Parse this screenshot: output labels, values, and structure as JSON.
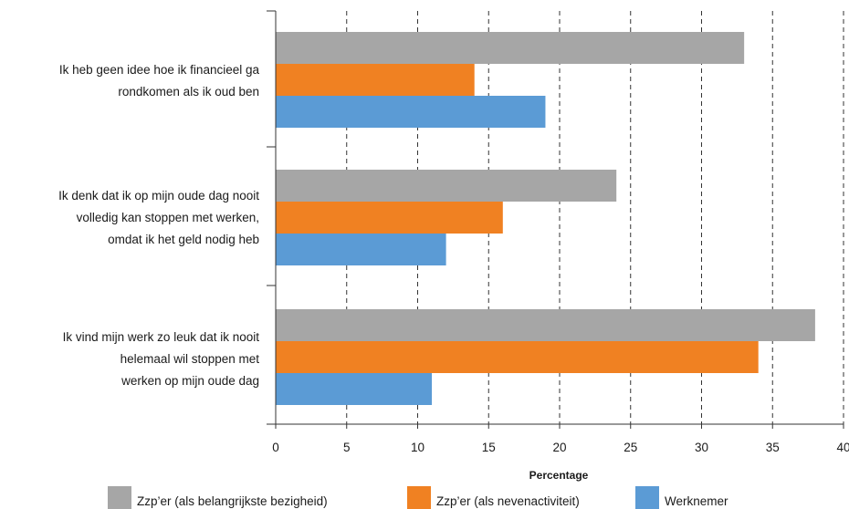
{
  "chart_data": {
    "type": "bar",
    "orientation": "horizontal",
    "categories": [
      [
        "Ik heb geen idee hoe ik financieel ga",
        "rondkomen als ik oud ben"
      ],
      [
        "Ik denk dat ik op mijn oude dag nooit",
        "volledig kan stoppen met werken,",
        "omdat ik het geld nodig heb"
      ],
      [
        "Ik vind mijn werk zo leuk dat ik nooit",
        "helemaal wil stoppen met",
        "werken op mijn oude dag"
      ]
    ],
    "series": [
      {
        "name": "Zzp’er (als belangrijkste bezigheid)",
        "color": "#a6a6a6",
        "values": [
          33,
          24,
          38
        ]
      },
      {
        "name": "Zzp’er (als nevenactiviteit)",
        "color": "#f08122",
        "values": [
          14,
          16,
          34
        ]
      },
      {
        "name": "Werknemer",
        "color": "#5b9bd5",
        "values": [
          19,
          12,
          11
        ]
      }
    ],
    "xlabel": "Percentage",
    "xlim": [
      0,
      40
    ],
    "xticks": [
      0,
      5,
      10,
      15,
      20,
      25,
      30,
      35,
      40
    ],
    "grid": "vertical dashed",
    "legend_position": "bottom"
  }
}
